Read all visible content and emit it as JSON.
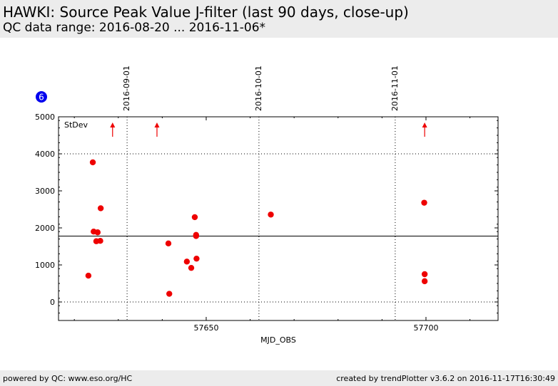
{
  "header": {
    "title": "HAWKI: Source Peak Value J-filter (last 90 days, close-up)",
    "subtitle": "QC data range: 2016-08-20 ... 2016-11-06*"
  },
  "footer": {
    "left": "powered by QC: www.eso.org/HC",
    "right": "created by trendPlotter v3.6.2 on 2016-11-17T16:30:49"
  },
  "badge": {
    "label": "6",
    "color": "#0000ee"
  },
  "chart_data": {
    "type": "scatter",
    "title": "",
    "xlabel": "MJD_OBS",
    "ylabel": "",
    "xlim": [
      57616.4,
      57716.4
    ],
    "ylim": [
      -500,
      5000
    ],
    "x_ticks": [
      57650,
      57700
    ],
    "y_ticks": [
      0,
      1000,
      2000,
      3000,
      4000,
      5000
    ],
    "grid": false,
    "annotation": "StDev",
    "mean_line": 1780,
    "point_color": "#ee0000",
    "date_markers": [
      {
        "label": "2016-09-01",
        "x": 57632
      },
      {
        "label": "2016-10-01",
        "x": 57662
      },
      {
        "label": "2016-11-01",
        "x": 57693
      }
    ],
    "dotted_levels": [
      0,
      4000
    ],
    "outliers_above": [
      57628.7,
      57638.8,
      57699.7
    ],
    "points": [
      {
        "x": 57623.2,
        "y": 710
      },
      {
        "x": 57624.2,
        "y": 3770
      },
      {
        "x": 57624.4,
        "y": 1900
      },
      {
        "x": 57625.0,
        "y": 1640
      },
      {
        "x": 57625.3,
        "y": 1880
      },
      {
        "x": 57625.9,
        "y": 1650
      },
      {
        "x": 57626.0,
        "y": 2530
      },
      {
        "x": 57641.4,
        "y": 1580
      },
      {
        "x": 57641.6,
        "y": 220
      },
      {
        "x": 57645.6,
        "y": 1090
      },
      {
        "x": 57646.6,
        "y": 920
      },
      {
        "x": 57647.4,
        "y": 2290
      },
      {
        "x": 57647.7,
        "y": 1810
      },
      {
        "x": 57647.7,
        "y": 1780
      },
      {
        "x": 57647.8,
        "y": 1170
      },
      {
        "x": 57664.7,
        "y": 2360
      },
      {
        "x": 57699.6,
        "y": 2680
      },
      {
        "x": 57699.7,
        "y": 750
      },
      {
        "x": 57699.7,
        "y": 560
      }
    ]
  }
}
